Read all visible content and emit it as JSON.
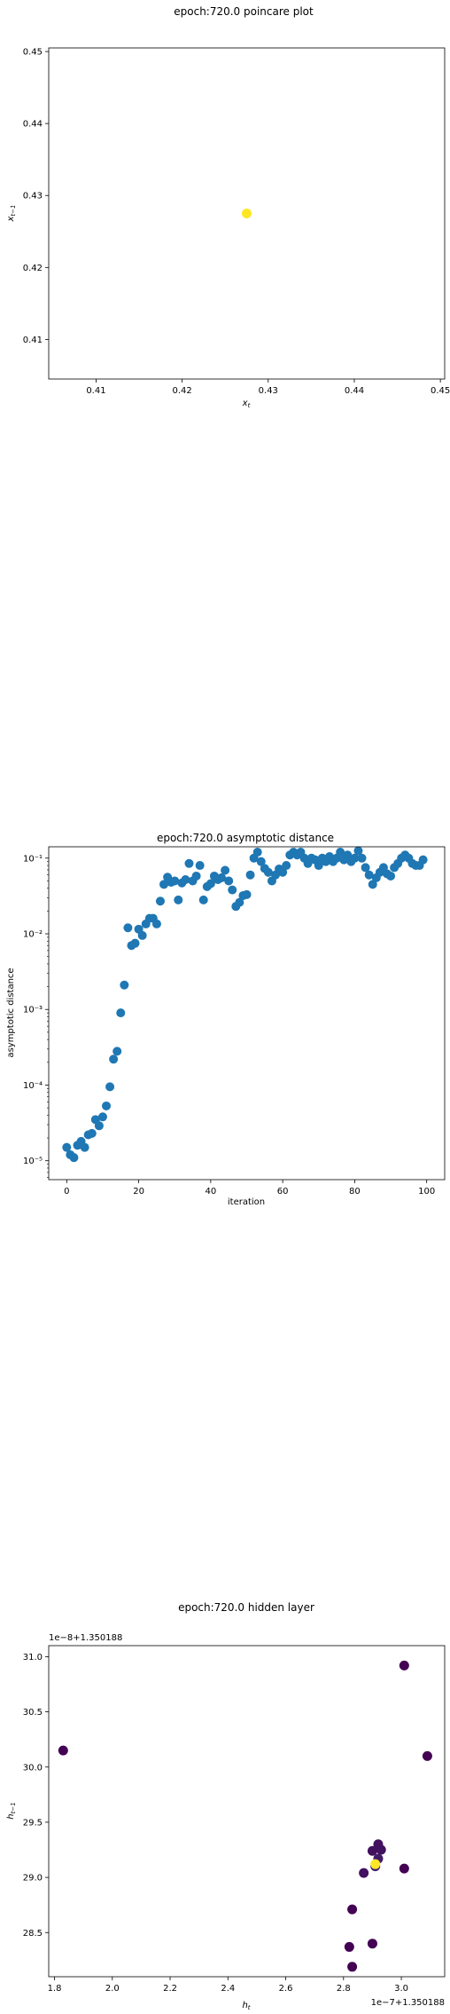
{
  "colors": {
    "poincare_point": "#fde725",
    "series": "#1f77b4",
    "hidden_early": "#440154",
    "hidden_late": "#fde725"
  },
  "chart_data": [
    {
      "type": "scatter",
      "title": "epoch:720.0 poincare plot",
      "xlabel": "x_t",
      "ylabel": "x_{t-1}",
      "xlim": [
        0.4045,
        0.4505
      ],
      "ylim": [
        0.4045,
        0.4505
      ],
      "x_ticks": [
        "0.41",
        "0.42",
        "0.43",
        "0.44",
        "0.45"
      ],
      "y_ticks": [
        "0.41",
        "0.42",
        "0.43",
        "0.44",
        "0.45"
      ],
      "x_tick_values": [
        0.41,
        0.42,
        0.43,
        0.44,
        0.45
      ],
      "y_tick_values": [
        0.41,
        0.42,
        0.43,
        0.44,
        0.45
      ],
      "points": [
        {
          "x": 0.4275,
          "y": 0.4275
        }
      ]
    },
    {
      "type": "scatter",
      "title": "epoch:720.0 asymptotic distance",
      "xlabel": "iteration",
      "ylabel": "asymptotic distance",
      "yscale": "log",
      "xlim": [
        -5,
        105
      ],
      "ylim_exp": [
        -5.25,
        -0.85
      ],
      "x_ticks": [
        "0",
        "20",
        "40",
        "60",
        "80",
        "100"
      ],
      "x_tick_values": [
        0,
        20,
        40,
        60,
        80,
        100
      ],
      "y_ticks": [
        "10⁻⁵",
        "10⁻⁴",
        "10⁻³",
        "10⁻²",
        "10⁻¹"
      ],
      "y_tick_exponents": [
        -5,
        -4,
        -3,
        -2,
        -1
      ],
      "x": [
        0,
        1,
        2,
        3,
        4,
        5,
        6,
        7,
        8,
        9,
        10,
        11,
        12,
        13,
        14,
        15,
        16,
        17,
        18,
        19,
        20,
        21,
        22,
        23,
        24,
        25,
        26,
        27,
        28,
        29,
        30,
        31,
        32,
        33,
        34,
        35,
        36,
        37,
        38,
        39,
        40,
        41,
        42,
        43,
        44,
        45,
        46,
        47,
        48,
        49,
        50,
        51,
        52,
        53,
        54,
        55,
        56,
        57,
        58,
        59,
        60,
        61,
        62,
        63,
        64,
        65,
        66,
        67,
        68,
        69,
        70,
        71,
        72,
        73,
        74,
        75,
        76,
        77,
        78,
        79,
        80,
        81,
        82,
        83,
        84,
        85,
        86,
        87,
        88,
        89,
        90,
        91,
        92,
        93,
        94,
        95,
        96,
        97,
        98,
        99
      ],
      "y": [
        1.5e-05,
        1.2e-05,
        1.1e-05,
        1.6e-05,
        1.8e-05,
        1.5e-05,
        2.2e-05,
        2.3e-05,
        3.5e-05,
        2.9e-05,
        3.8e-05,
        5.3e-05,
        9.5e-05,
        0.00022,
        0.00028,
        0.0009,
        0.0021,
        0.012,
        0.007,
        0.0075,
        0.0115,
        0.0095,
        0.0135,
        0.016,
        0.016,
        0.0135,
        0.027,
        0.045,
        0.056,
        0.048,
        0.05,
        0.028,
        0.047,
        0.052,
        0.085,
        0.05,
        0.058,
        0.08,
        0.028,
        0.042,
        0.046,
        0.058,
        0.052,
        0.055,
        0.069,
        0.05,
        0.038,
        0.023,
        0.026,
        0.032,
        0.033,
        0.06,
        0.1,
        0.12,
        0.09,
        0.073,
        0.065,
        0.05,
        0.06,
        0.072,
        0.065,
        0.08,
        0.11,
        0.12,
        0.11,
        0.12,
        0.1,
        0.085,
        0.1,
        0.095,
        0.08,
        0.1,
        0.09,
        0.105,
        0.09,
        0.1,
        0.12,
        0.095,
        0.11,
        0.09,
        0.1,
        0.125,
        0.1,
        0.075,
        0.06,
        0.045,
        0.055,
        0.065,
        0.075,
        0.062,
        0.058,
        0.075,
        0.085,
        0.1,
        0.11,
        0.1,
        0.085,
        0.08,
        0.08,
        0.095
      ]
    },
    {
      "type": "scatter",
      "title": "epoch:720.0 hidden layer",
      "xlabel": "h_t",
      "ylabel": "h_{t-1}",
      "x_offset": "1e−7+1.350188",
      "y_offset": "1e−8+1.350188",
      "xlim": [
        1.78,
        3.15
      ],
      "ylim": [
        28.1,
        31.1
      ],
      "x_ticks": [
        "1.8",
        "2.0",
        "2.2",
        "2.4",
        "2.6",
        "2.8",
        "3.0"
      ],
      "x_tick_values": [
        1.8,
        2.0,
        2.2,
        2.4,
        2.6,
        2.8,
        3.0
      ],
      "y_ticks": [
        "28.5",
        "29.0",
        "29.5",
        "30.0",
        "30.5",
        "31.0"
      ],
      "y_tick_values": [
        28.5,
        29.0,
        29.5,
        30.0,
        30.5,
        31.0
      ],
      "points": [
        {
          "x": 3.01,
          "y": 30.92,
          "c": 0.0
        },
        {
          "x": 1.83,
          "y": 30.15,
          "c": 0.0
        },
        {
          "x": 3.09,
          "y": 30.1,
          "c": 0.0
        },
        {
          "x": 2.92,
          "y": 29.3,
          "c": 0.05
        },
        {
          "x": 2.93,
          "y": 29.25,
          "c": 0.05
        },
        {
          "x": 2.9,
          "y": 29.24,
          "c": 0.05
        },
        {
          "x": 2.92,
          "y": 29.17,
          "c": 0.08
        },
        {
          "x": 2.91,
          "y": 29.1,
          "c": 0.1
        },
        {
          "x": 3.01,
          "y": 29.08,
          "c": 0.0
        },
        {
          "x": 2.87,
          "y": 29.04,
          "c": 0.05
        },
        {
          "x": 2.83,
          "y": 28.71,
          "c": 0.0
        },
        {
          "x": 2.9,
          "y": 28.4,
          "c": 0.0
        },
        {
          "x": 2.82,
          "y": 28.37,
          "c": 0.0
        },
        {
          "x": 2.83,
          "y": 28.19,
          "c": 0.0
        },
        {
          "x": 2.91,
          "y": 29.12,
          "c": 1.0
        }
      ]
    }
  ]
}
